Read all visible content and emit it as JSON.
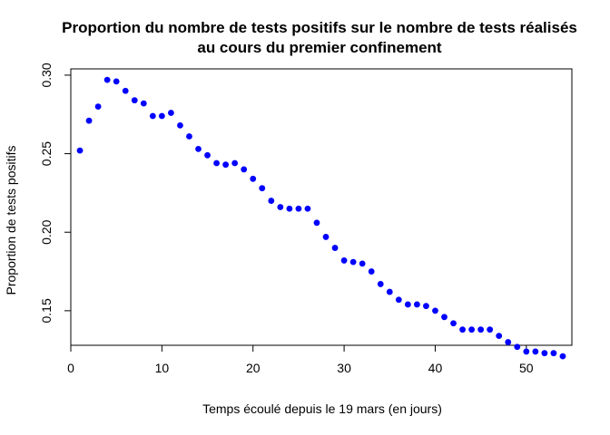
{
  "chart_data": {
    "type": "scatter",
    "title_lines": [
      "Proportion du nombre de tests positifs sur le nombre de tests réalisés",
      "au cours du premier confinement"
    ],
    "xlabel": "Temps écoulé depuis le 19 mars (en jours)",
    "ylabel": "Proportion de tests positifs",
    "xlim": [
      0,
      55
    ],
    "ylim": [
      0.128,
      0.304
    ],
    "x_ticks": [
      0,
      10,
      20,
      30,
      40,
      50
    ],
    "y_ticks": [
      0.15,
      0.2,
      0.25,
      0.3
    ],
    "x_tick_labels": [
      "0",
      "10",
      "20",
      "30",
      "40",
      "50"
    ],
    "y_tick_labels": [
      "0.15",
      "0.20",
      "0.25",
      "0.30"
    ],
    "grid": false,
    "point_color": "#0000ff",
    "series": [
      {
        "x": [
          1,
          2,
          3,
          4,
          5,
          6,
          7,
          8,
          9,
          10,
          11,
          12,
          13,
          14,
          15,
          16,
          17,
          18,
          19,
          20,
          21,
          22,
          23,
          24,
          25,
          26,
          27,
          28,
          29,
          30,
          31,
          32,
          33,
          34,
          35,
          36,
          37,
          38,
          39,
          40,
          41,
          42,
          43,
          44,
          45,
          46,
          47,
          48,
          49,
          50,
          51,
          52,
          53,
          54
        ],
        "y": [
          0.252,
          0.271,
          0.28,
          0.297,
          0.296,
          0.29,
          0.284,
          0.282,
          0.274,
          0.274,
          0.276,
          0.268,
          0.261,
          0.253,
          0.249,
          0.244,
          0.243,
          0.244,
          0.24,
          0.234,
          0.228,
          0.22,
          0.216,
          0.215,
          0.215,
          0.215,
          0.206,
          0.197,
          0.19,
          0.182,
          0.181,
          0.18,
          0.175,
          0.167,
          0.162,
          0.157,
          0.154,
          0.154,
          0.153,
          0.15,
          0.146,
          0.142,
          0.138,
          0.138,
          0.138,
          0.138,
          0.134,
          0.13,
          0.127,
          0.124,
          0.124,
          0.123,
          0.123,
          0.121
        ]
      }
    ]
  }
}
